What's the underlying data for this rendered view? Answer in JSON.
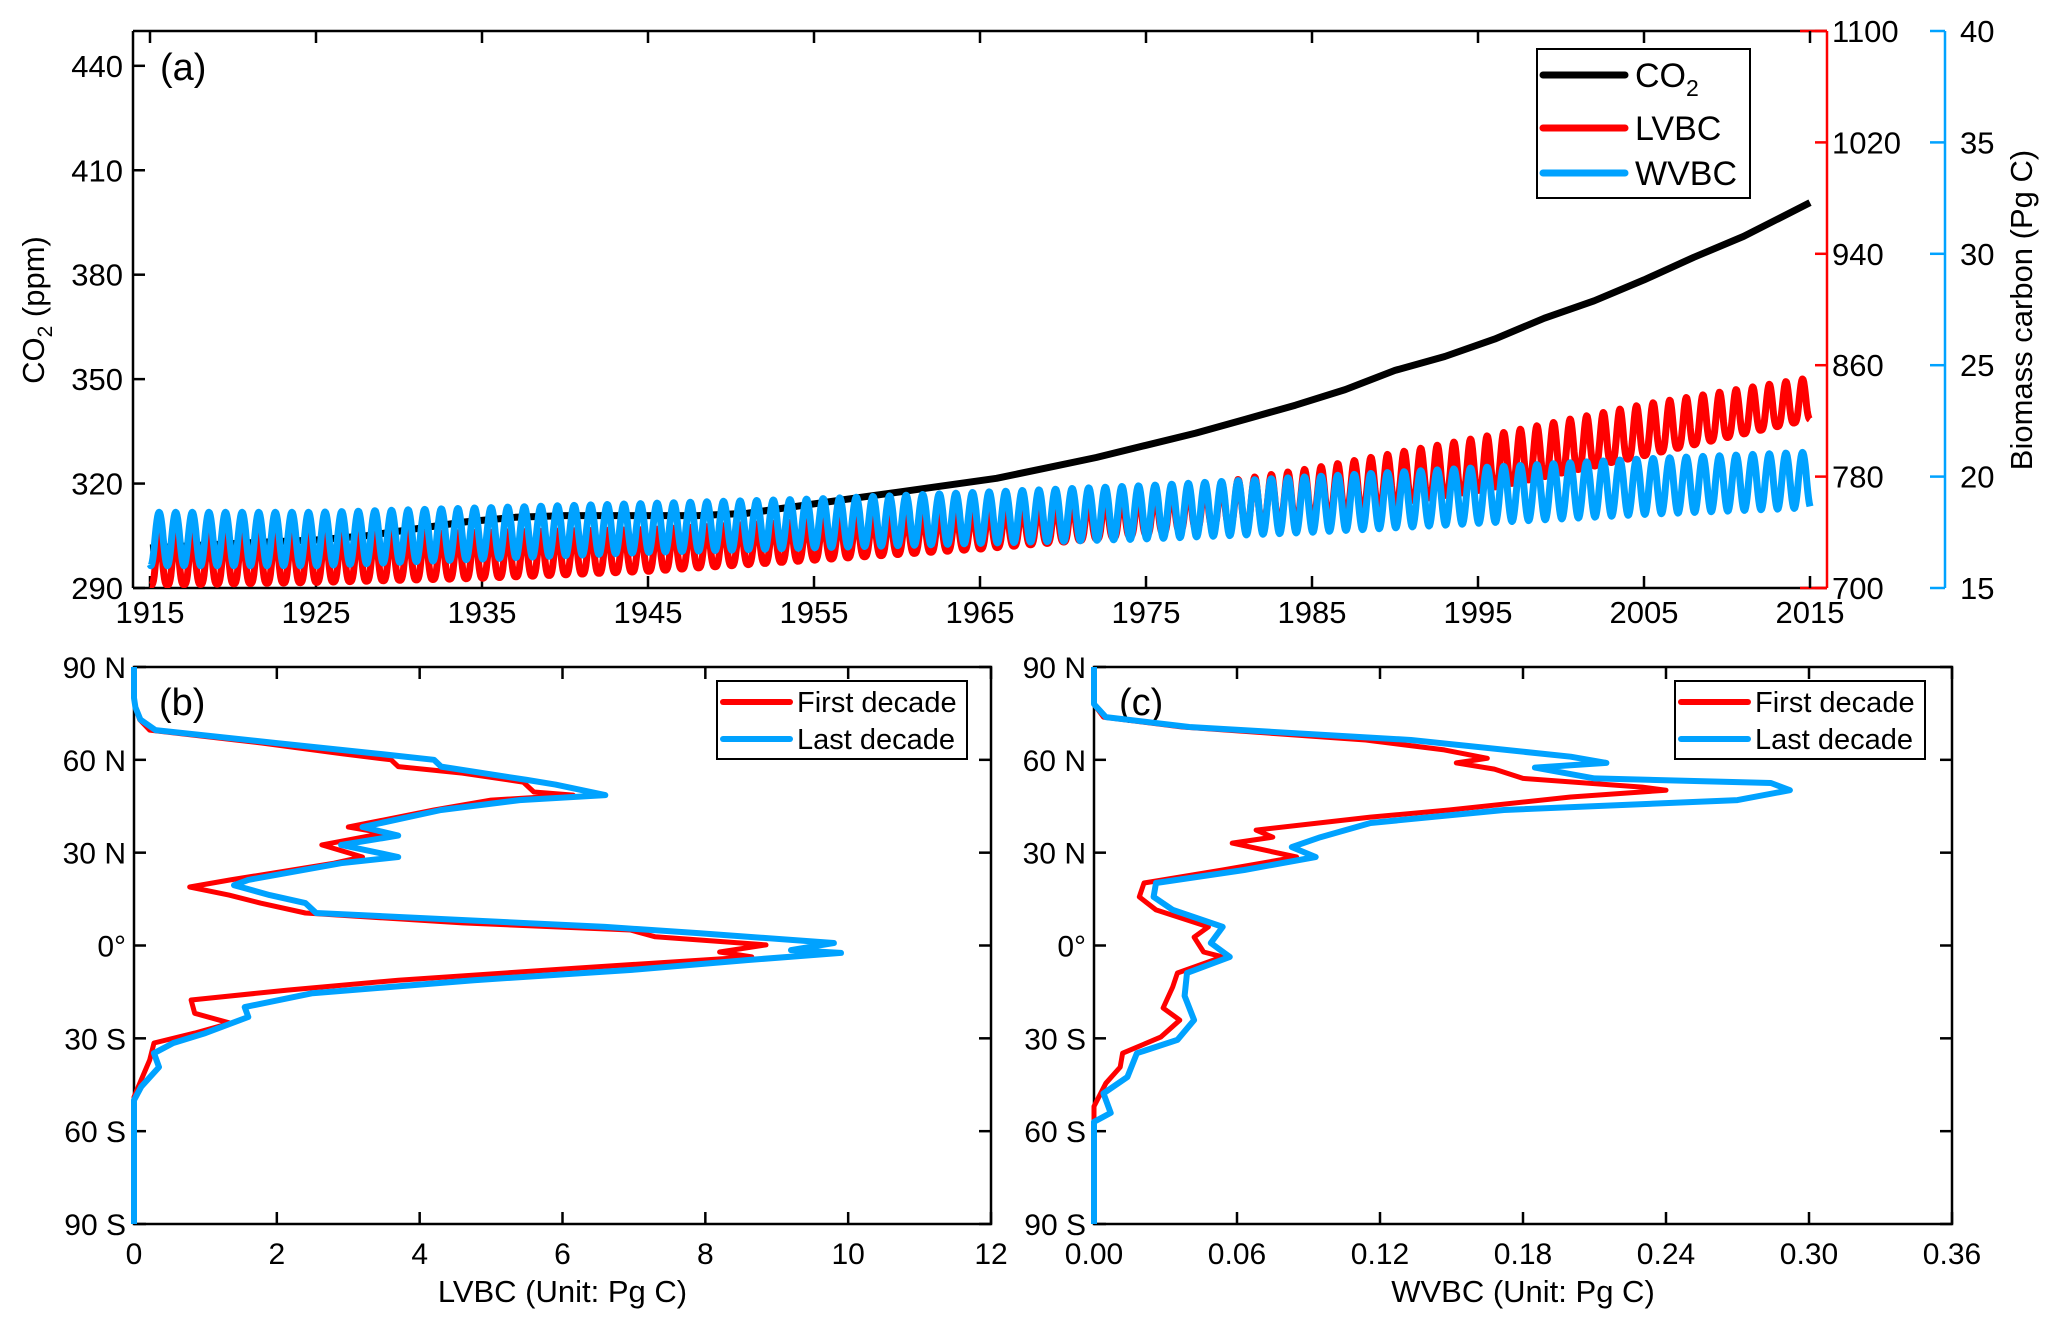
{
  "chart_data": [
    {
      "panel": "(a)",
      "type": "line",
      "title": "",
      "xlabel": "",
      "x_ticks": [
        "1915",
        "1925",
        "1935",
        "1945",
        "1955",
        "1965",
        "1975",
        "1985",
        "1995",
        "2005",
        "2015"
      ],
      "xlim": [
        1913.0,
        2016.0
      ],
      "grid": false,
      "legend_position": "top-right",
      "axes": {
        "left": {
          "label_main": "CO",
          "label_sub": "2",
          "label_rest": " (ppm)",
          "color": "#000000",
          "ylim": [
            290,
            450
          ],
          "ticks": [
            "290",
            "320",
            "350",
            "380",
            "410",
            "440"
          ]
        },
        "right1": {
          "label": "",
          "color": "#ff0000",
          "ylim": [
            700,
            1100
          ],
          "ticks": [
            "700",
            "780",
            "860",
            "940",
            "1020",
            "1100"
          ]
        },
        "right2": {
          "label": "Biomass carbon (Pg C)",
          "color": "#00a2ff",
          "ylim": [
            15,
            40
          ],
          "ticks": [
            "15",
            "20",
            "25",
            "30",
            "35",
            "40"
          ]
        }
      },
      "series": [
        {
          "name": "CO2",
          "legend_main": "CO",
          "legend_sub": "2",
          "axis": "left",
          "color": "#000000",
          "x": [
            1915,
            1918,
            1921,
            1925,
            1928,
            1931,
            1934,
            1937,
            1940,
            1944,
            1948,
            1951,
            1954,
            1957,
            1960,
            1963,
            1966,
            1969,
            1972,
            1975,
            1978,
            1981,
            1984,
            1987,
            1990,
            1993,
            1996,
            1999,
            2002,
            2005,
            2008,
            2011,
            2015
          ],
          "y": [
            301.5,
            302.3,
            303.0,
            303.8,
            305.0,
            307.0,
            309.0,
            310.3,
            310.8,
            310.8,
            310.8,
            311.5,
            313.5,
            315.5,
            317.5,
            319.5,
            321.5,
            324.5,
            327.5,
            331.0,
            334.5,
            338.5,
            342.5,
            347.0,
            352.5,
            356.5,
            361.5,
            367.5,
            372.5,
            378.5,
            385.0,
            391.0,
            400.7
          ]
        },
        {
          "name": "LVBC",
          "axis": "right1",
          "color": "#ff0000",
          "annual_cycle": true,
          "x": [
            1915,
            1925,
            1935,
            1945,
            1955,
            1965,
            1975,
            1985,
            1995,
            2005,
            2015
          ],
          "trough": [
            702,
            704,
            707,
            712,
            720,
            728,
            738,
            752,
            770,
            795,
            821
          ],
          "peak": [
            738,
            738,
            740,
            742,
            748,
            756,
            768,
            786,
            808,
            832,
            851
          ]
        },
        {
          "name": "WVBC",
          "axis": "right2",
          "color": "#00a2ff",
          "annual_cycle": true,
          "x": [
            1915,
            1925,
            1935,
            1945,
            1955,
            1965,
            1975,
            1985,
            1995,
            2005,
            2015
          ],
          "trough": [
            16.0,
            16.0,
            16.3,
            16.6,
            16.8,
            17.0,
            17.2,
            17.5,
            17.9,
            18.3,
            18.6
          ],
          "peak": [
            18.4,
            18.4,
            18.6,
            18.8,
            19.0,
            19.3,
            19.6,
            20.0,
            20.4,
            20.8,
            21.1
          ]
        }
      ]
    },
    {
      "panel": "(b)",
      "type": "line",
      "title": "",
      "xlabel": "LVBC (Unit: Pg C)",
      "ylabel": "",
      "xlim": [
        0,
        12
      ],
      "ylim": [
        -90,
        90
      ],
      "x_ticks": [
        "0",
        "2",
        "4",
        "6",
        "8",
        "10",
        "12"
      ],
      "y_ticks": [
        "90 S",
        "60 S",
        "30 S",
        "0°",
        "30 N",
        "60 N",
        "90 N"
      ],
      "grid": false,
      "legend_position": "top-right",
      "series": [
        {
          "name": "First decade",
          "color": "#ff0000",
          "lat": [
            90,
            80,
            77,
            73,
            69.6,
            65.4,
            62,
            60,
            57.8,
            55.7,
            52.8,
            49.6,
            48.6,
            47,
            43.8,
            38.3,
            36.3,
            32.5,
            28.6,
            26.6,
            21.2,
            18.9,
            16.3,
            13.7,
            10.5,
            7.3,
            5.0,
            2.8,
            0.2,
            -2.1,
            -3.7,
            -7.3,
            -11.2,
            -14.4,
            -17.6,
            -21.9,
            -25.1,
            -28.3,
            -31.5,
            -37,
            -43.5,
            -49,
            -60,
            -90
          ],
          "value": [
            0,
            0,
            0.02,
            0.08,
            0.22,
            1.8,
            2.9,
            3.6,
            3.7,
            4.6,
            5.45,
            5.6,
            6.15,
            5.0,
            4.2,
            3.0,
            3.5,
            2.63,
            3.2,
            2.8,
            1.35,
            0.78,
            1.33,
            1.77,
            2.4,
            4.6,
            6.95,
            7.3,
            8.85,
            8.2,
            8.65,
            6.2,
            3.7,
            2.15,
            0.8,
            0.85,
            1.35,
            0.85,
            0.28,
            0.22,
            0.1,
            0.0,
            0,
            0
          ]
        },
        {
          "name": "Last decade",
          "color": "#00a2ff",
          "lat": [
            90,
            80,
            77,
            73,
            69.6,
            65.4,
            62,
            60,
            57.8,
            53.5,
            52,
            48.6,
            47,
            43.8,
            38.3,
            35.5,
            32.5,
            28.6,
            26.6,
            21.2,
            19.5,
            16.3,
            13.7,
            10.5,
            6.0,
            4.0,
            0.8,
            -1.5,
            -2.4,
            -4.7,
            -7.9,
            -11.2,
            -15.4,
            -19.9,
            -23.1,
            -28.3,
            -31.5,
            -34.8,
            -39.3,
            -45.7,
            -50,
            -60,
            -90
          ],
          "value": [
            0,
            0,
            0.02,
            0.09,
            0.3,
            2.0,
            3.4,
            4.2,
            4.3,
            5.5,
            5.9,
            6.6,
            5.4,
            4.3,
            3.2,
            3.7,
            2.9,
            3.7,
            2.9,
            1.6,
            1.4,
            1.9,
            2.4,
            2.55,
            6.6,
            7.9,
            9.8,
            9.2,
            9.9,
            8.6,
            6.97,
            4.76,
            2.5,
            1.55,
            1.6,
            1.0,
            0.55,
            0.28,
            0.35,
            0.1,
            0.0,
            0,
            0
          ]
        }
      ]
    },
    {
      "panel": "(c)",
      "type": "line",
      "title": "",
      "xlabel": "WVBC (Unit: Pg C)",
      "ylabel": "",
      "xlim": [
        0,
        0.36
      ],
      "ylim": [
        -90,
        90
      ],
      "x_ticks": [
        "0.00",
        "0.06",
        "0.12",
        "0.18",
        "0.24",
        "0.30",
        "0.36"
      ],
      "y_ticks": [
        "90 S",
        "60 S",
        "30 S",
        "0°",
        "30 N",
        "60 N",
        "90 N"
      ],
      "grid": false,
      "legend_position": "top-right",
      "series": [
        {
          "name": "First decade",
          "color": "#ff0000",
          "lat": [
            90,
            78,
            73.8,
            70.6,
            66.4,
            63.2,
            60.5,
            59,
            57,
            54,
            51.2,
            50.2,
            48,
            43.8,
            41.5,
            37.3,
            35,
            33.1,
            28.6,
            24.4,
            20.2,
            15.7,
            11.5,
            6.0,
            2.7,
            -2.1,
            -3.7,
            -8.9,
            -13.4,
            -20.2,
            -24.1,
            -29.6,
            -34.8,
            -39.3,
            -44.5,
            -52,
            -60,
            -90
          ],
          "value": [
            0,
            0,
            0.004,
            0.037,
            0.114,
            0.147,
            0.165,
            0.152,
            0.168,
            0.18,
            0.23,
            0.24,
            0.2,
            0.149,
            0.116,
            0.068,
            0.075,
            0.058,
            0.085,
            0.054,
            0.021,
            0.019,
            0.026,
            0.048,
            0.042,
            0.046,
            0.054,
            0.035,
            0.033,
            0.029,
            0.036,
            0.028,
            0.012,
            0.011,
            0.005,
            0.0,
            0,
            0
          ]
        },
        {
          "name": "Last decade",
          "color": "#00a2ff",
          "lat": [
            90,
            78,
            73.8,
            70.6,
            66.4,
            61,
            59,
            57.5,
            54,
            52.5,
            50.2,
            47,
            43.8,
            39.6,
            35,
            31.8,
            28.6,
            24.4,
            20.2,
            15.7,
            11.5,
            6.0,
            0.8,
            -3.7,
            -8.9,
            -16.3,
            -24.1,
            -30.5,
            -34.8,
            -42.5,
            -47.8,
            -54.1,
            -57,
            -60,
            -90
          ],
          "value": [
            0,
            0,
            0.005,
            0.04,
            0.133,
            0.2,
            0.215,
            0.185,
            0.21,
            0.284,
            0.292,
            0.27,
            0.172,
            0.116,
            0.095,
            0.083,
            0.093,
            0.063,
            0.026,
            0.025,
            0.033,
            0.054,
            0.049,
            0.057,
            0.039,
            0.038,
            0.042,
            0.035,
            0.018,
            0.014,
            0.004,
            0.007,
            0.0,
            0,
            0
          ]
        }
      ]
    }
  ]
}
